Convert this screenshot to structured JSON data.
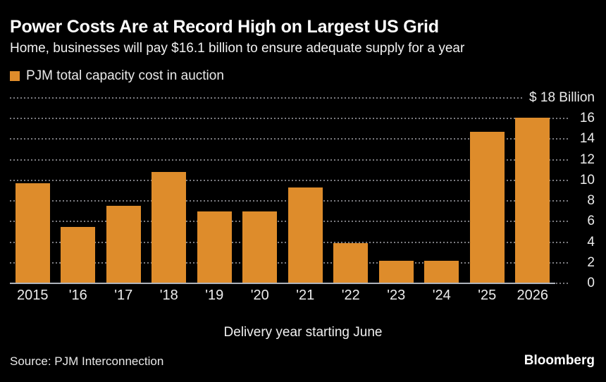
{
  "header": {
    "title": "Power Costs Are at Record High on Largest US Grid",
    "subtitle": "Home, businesses will pay $16.1 billion to ensure adequate supply for a year"
  },
  "legend": {
    "label": "PJM total capacity cost in auction"
  },
  "colors": {
    "background": "#000000",
    "bar": "#DE8C2B",
    "gridline": "#7B7B80",
    "axis_line": "#AEB3BB",
    "title_text": "#FFFFFF",
    "tick_text": "#ECECEC"
  },
  "chart_data": {
    "type": "bar",
    "title": "Power Costs Are at Record High on Largest US Grid",
    "subtitle": "Home, businesses will pay $16.1 billion to ensure adequate supply for a year",
    "legend_entries": [
      "PJM total capacity cost in auction"
    ],
    "legend_position": "top-left",
    "categories": [
      "2015",
      "'16",
      "'17",
      "'18",
      "'19",
      "'20",
      "'21",
      "'22",
      "'23",
      "'24",
      "'25",
      "2026"
    ],
    "values": [
      9.7,
      5.5,
      7.5,
      10.8,
      7.0,
      7.0,
      9.3,
      3.9,
      2.2,
      2.2,
      14.7,
      16.1
    ],
    "xlabel": "Delivery year starting June",
    "ylabel": "$ Billion",
    "ylim": [
      0,
      18
    ],
    "y_tick_values": [
      18,
      16,
      14,
      12,
      10,
      8,
      6,
      4,
      2,
      0
    ],
    "y_tick_labels": [
      "$ 18 Billion",
      "16",
      "14",
      "12",
      "10",
      "8",
      "6",
      "4",
      "2",
      "0"
    ],
    "grid": "horizontal-dotted",
    "axis_side": "right"
  },
  "footer": {
    "source": "Source: PJM Interconnection",
    "brand": "Bloomberg"
  }
}
